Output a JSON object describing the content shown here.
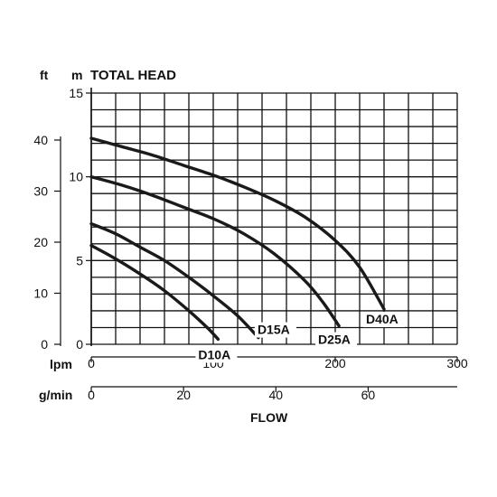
{
  "chart_data": {
    "type": "line",
    "title": "TOTAL HEAD",
    "ylabel_ft": "ft",
    "ylabel_m": "m",
    "xlabel": "FLOW",
    "x_unit_lpm": "lpm",
    "x_unit_gmin": "g/min",
    "m_axis": {
      "range": [
        0,
        15
      ],
      "ticks": [
        "0",
        "5",
        "10",
        "15"
      ],
      "tick_values": [
        0,
        5,
        10,
        15
      ]
    },
    "ft_axis": {
      "range": [
        0,
        49.2
      ],
      "ticks": [
        "0",
        "10",
        "20",
        "30",
        "40"
      ],
      "tick_values": [
        0,
        10,
        20,
        30,
        40
      ]
    },
    "lpm_axis": {
      "range": [
        0,
        300
      ],
      "ticks": [
        "0",
        "100",
        "200",
        "300"
      ],
      "tick_values": [
        0,
        100,
        200,
        300
      ]
    },
    "gmin_axis": {
      "range": [
        0,
        79.3
      ],
      "ticks": [
        "0",
        "20",
        "40",
        "60"
      ],
      "tick_values": [
        0,
        20,
        40,
        60
      ]
    },
    "grid": true,
    "series": [
      {
        "name": "D10A",
        "x": [
          0,
          20,
          40,
          60,
          80,
          95,
          104
        ],
        "y": [
          5.9,
          5.1,
          4.2,
          3.2,
          2.0,
          1.0,
          0.3
        ]
      },
      {
        "name": "D15A",
        "x": [
          0,
          20,
          40,
          60,
          80,
          100,
          120,
          137
        ],
        "y": [
          7.2,
          6.6,
          5.8,
          5.0,
          4.0,
          2.9,
          1.7,
          0.4
        ]
      },
      {
        "name": "D25A",
        "x": [
          0,
          25,
          50,
          75,
          100,
          125,
          150,
          175,
          190,
          203
        ],
        "y": [
          10.0,
          9.5,
          8.9,
          8.2,
          7.5,
          6.6,
          5.4,
          3.8,
          2.5,
          1.1
        ]
      },
      {
        "name": "D40A",
        "x": [
          0,
          25,
          50,
          75,
          100,
          125,
          150,
          175,
          200,
          220,
          240
        ],
        "y": [
          12.3,
          11.8,
          11.3,
          10.7,
          10.1,
          9.4,
          8.6,
          7.6,
          6.2,
          4.6,
          2.1
        ]
      }
    ]
  }
}
